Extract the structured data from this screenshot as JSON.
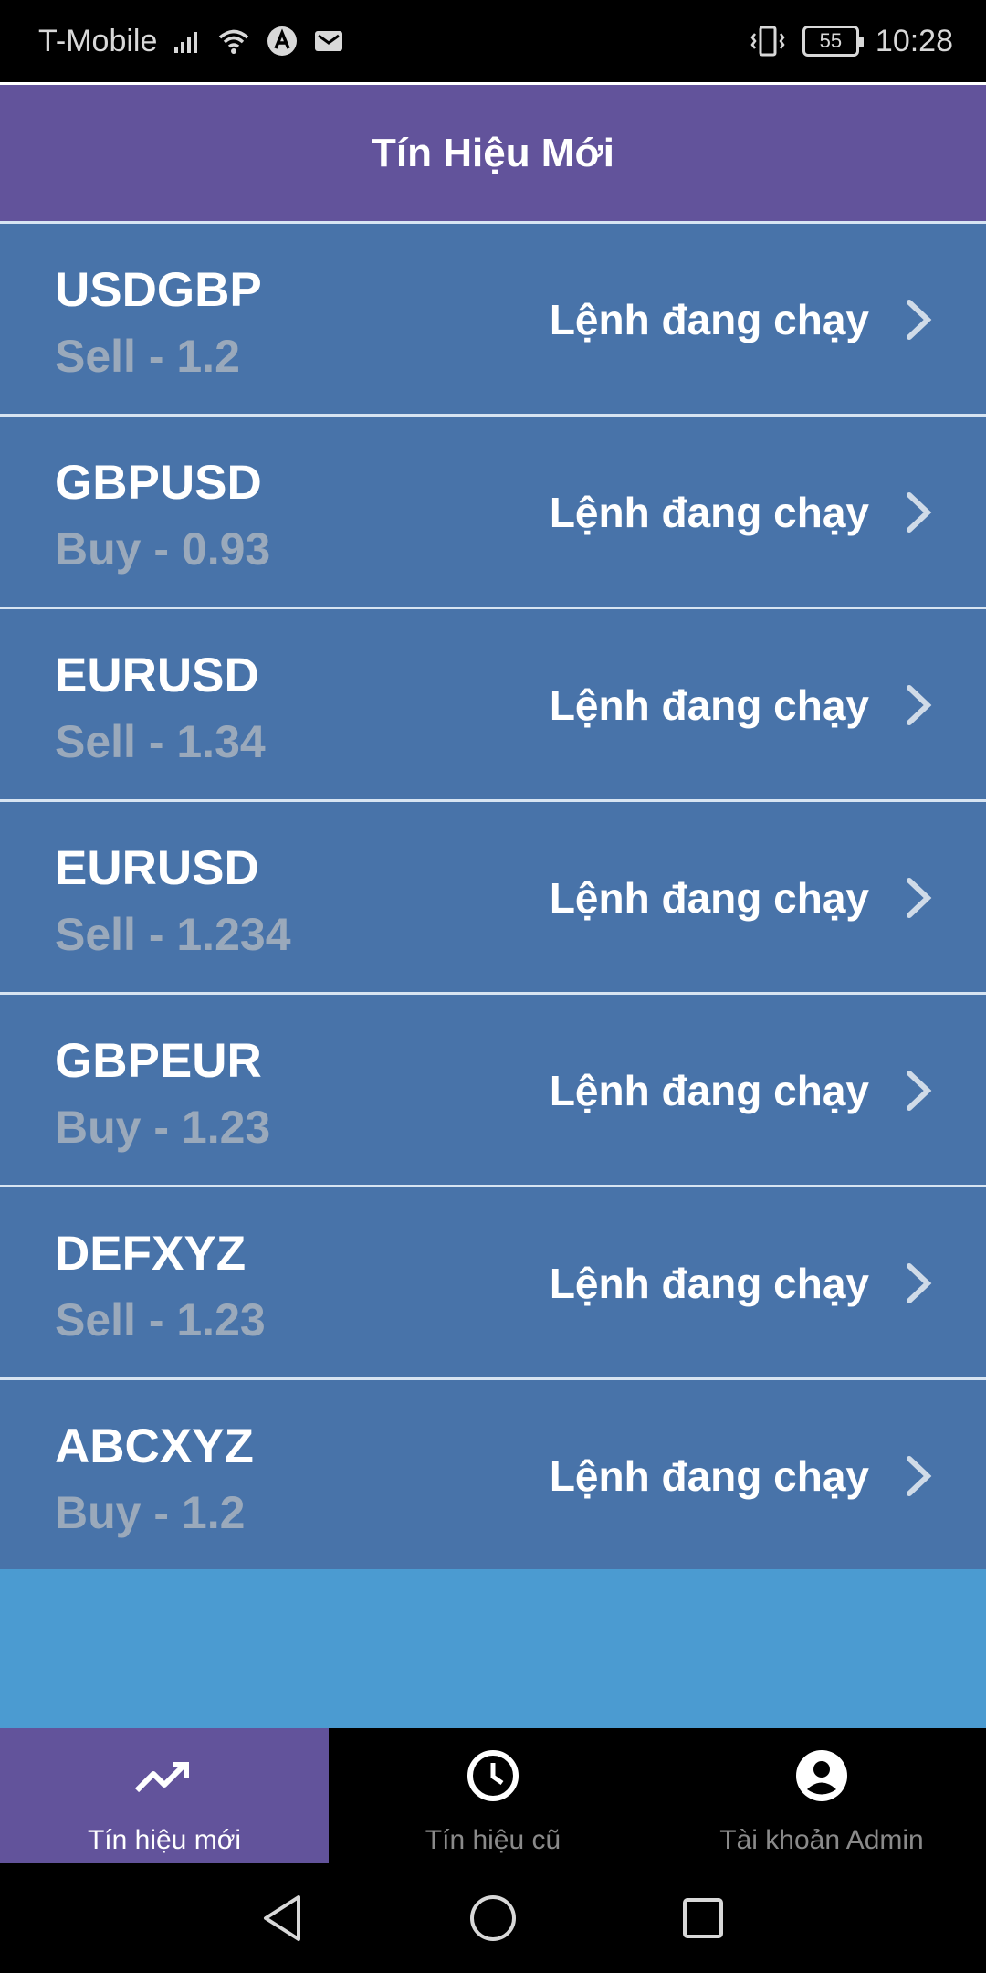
{
  "status_bar": {
    "carrier": "T-Mobile",
    "battery": "55",
    "time": "10:28",
    "icons": [
      "signal-icon",
      "wifi-icon",
      "app-a-icon",
      "mail-icon",
      "vibrate-icon",
      "battery-icon"
    ]
  },
  "header": {
    "title": "Tín Hiệu Mới"
  },
  "signals": [
    {
      "pair": "USDGBP",
      "detail": "Sell - 1.2",
      "status": "Lệnh đang chạy"
    },
    {
      "pair": "GBPUSD",
      "detail": "Buy - 0.93",
      "status": "Lệnh đang chạy"
    },
    {
      "pair": "EURUSD",
      "detail": "Sell - 1.34",
      "status": "Lệnh đang chạy"
    },
    {
      "pair": "EURUSD",
      "detail": "Sell - 1.234",
      "status": "Lệnh đang chạy"
    },
    {
      "pair": "GBPEUR",
      "detail": "Buy - 1.23",
      "status": "Lệnh đang chạy"
    },
    {
      "pair": "DEFXYZ",
      "detail": "Sell - 1.23",
      "status": "Lệnh đang chạy"
    },
    {
      "pair": "ABCXYZ",
      "detail": "Buy - 1.2",
      "status": "Lệnh đang chạy"
    }
  ],
  "tabs": [
    {
      "label": "Tín hiệu mới",
      "icon": "trending-up-icon",
      "active": true
    },
    {
      "label": "Tín hiệu cũ",
      "icon": "clock-icon",
      "active": false
    },
    {
      "label": "Tài khoản Admin",
      "icon": "account-icon",
      "active": false
    }
  ],
  "colors": {
    "header": "#62539b",
    "row": "#4873a9",
    "list_bg": "#4b9bd1",
    "detail_text": "#9aa9bb"
  }
}
